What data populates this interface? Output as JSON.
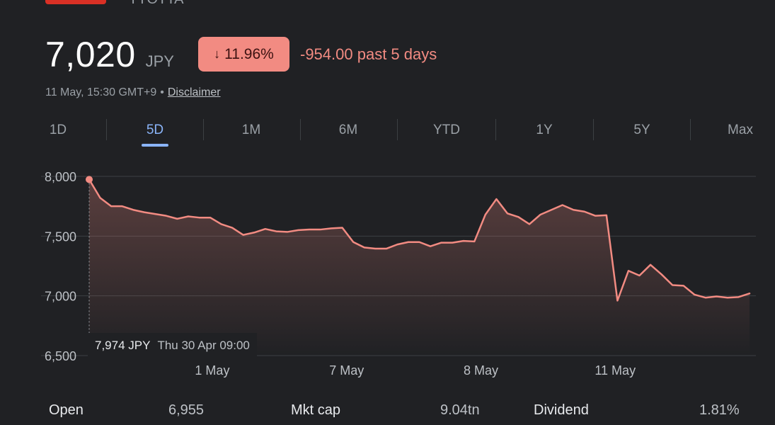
{
  "header": {
    "name_fragment": "TYOTTA"
  },
  "quote": {
    "price": "7,020",
    "currency": "JPY",
    "change_percent": "11.96%",
    "change_direction": "down",
    "change_abs": "-954.00 past 5 days",
    "timestamp": "11 May, 15:30 GMT+9",
    "separator": "•",
    "disclaimer": "Disclaimer"
  },
  "tabs": [
    {
      "label": "1D",
      "active": false
    },
    {
      "label": "5D",
      "active": true
    },
    {
      "label": "1M",
      "active": false
    },
    {
      "label": "6M",
      "active": false
    },
    {
      "label": "YTD",
      "active": false
    },
    {
      "label": "1Y",
      "active": false
    },
    {
      "label": "5Y",
      "active": false
    },
    {
      "label": "Max",
      "active": false
    }
  ],
  "tooltip": {
    "price": "7,974 JPY",
    "time": "Thu 30 Apr 09:00"
  },
  "stats": [
    {
      "label": "Open",
      "value": "6,955"
    },
    {
      "label": "Mkt cap",
      "value": "9.04tn"
    },
    {
      "label": "Dividend",
      "value": "1.81%"
    }
  ],
  "colors": {
    "line": "#f28b82",
    "accent": "#8ab4f8",
    "background": "#202124"
  },
  "chart_data": {
    "type": "line",
    "y_ticks": [
      "8,000",
      "7,500",
      "7,000",
      "6,500"
    ],
    "ylim": [
      6500,
      8000
    ],
    "x_ticks": [
      {
        "label": "1 May",
        "x": 11
      },
      {
        "label": "7 May",
        "x": 23
      },
      {
        "label": "8 May",
        "x": 35
      },
      {
        "label": "11 May",
        "x": 47
      }
    ],
    "xlim": [
      0,
      59
    ],
    "highlight_index": 0,
    "values": [
      7974,
      7820,
      7750,
      7750,
      7720,
      7700,
      7685,
      7670,
      7645,
      7665,
      7655,
      7655,
      7600,
      7570,
      7510,
      7530,
      7560,
      7540,
      7535,
      7550,
      7555,
      7555,
      7565,
      7570,
      7450,
      7405,
      7395,
      7395,
      7430,
      7450,
      7450,
      7415,
      7445,
      7445,
      7460,
      7455,
      7680,
      7810,
      7690,
      7660,
      7600,
      7680,
      7720,
      7760,
      7720,
      7705,
      7670,
      7675,
      6960,
      7210,
      7170,
      7260,
      7180,
      7090,
      7085,
      7010,
      6985,
      6995,
      6985,
      6990,
      7020
    ]
  }
}
